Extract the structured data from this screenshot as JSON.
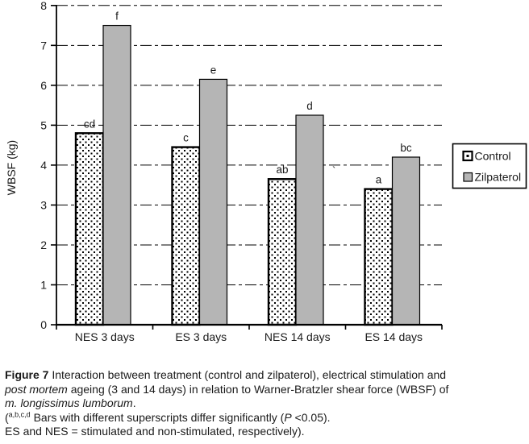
{
  "chart_data": {
    "type": "bar",
    "title": "",
    "ylabel": "WBSF (kg)",
    "xlabel": "",
    "ylim": [
      0,
      8
    ],
    "ytick_step": 1,
    "grid": "horizontal dashed gridlines at each integer",
    "legend_position": "right",
    "categories": [
      "NES 3 days",
      "ES 3 days",
      "NES 14 days",
      "ES 14 days"
    ],
    "series": [
      {
        "name": "Control",
        "pattern": "black-dotted on white, thick black border",
        "values": [
          4.8,
          4.45,
          3.65,
          3.4
        ],
        "superscripts": [
          "cd",
          "c",
          "ab",
          "a"
        ]
      },
      {
        "name": "Zilpaterol",
        "pattern": "solid gray, thin black border",
        "values": [
          7.5,
          6.15,
          5.25,
          4.2
        ],
        "superscripts": [
          "f",
          "e",
          "d",
          "bc"
        ]
      }
    ],
    "stray_mark": "`"
  },
  "colors": {
    "bar_gray": "#b5b5b5",
    "bar_dot": "#000000",
    "axis": "#000000",
    "background": "#ffffff"
  },
  "caption": {
    "line1_bold": "Figure 7",
    "line1_rest": " Interaction between treatment (control and zilpaterol), electrical stimulation and",
    "line2_italic": "post mortem",
    "line2_rest": " ageing (3 and 14 days) in relation to Warner-Bratzler shear force (WBSF) of",
    "line3_italic": "m. longissimus lumborum",
    "line3_rest": ".",
    "line4_open": "(",
    "line4_sup": "a,b,c,d",
    "line4_mid": " Bars with different superscripts differ significantly (",
    "line4_italic": "P",
    "line4_end": " <0.05).",
    "line5": "ES and NES = stimulated and non-stimulated, respectively)."
  }
}
